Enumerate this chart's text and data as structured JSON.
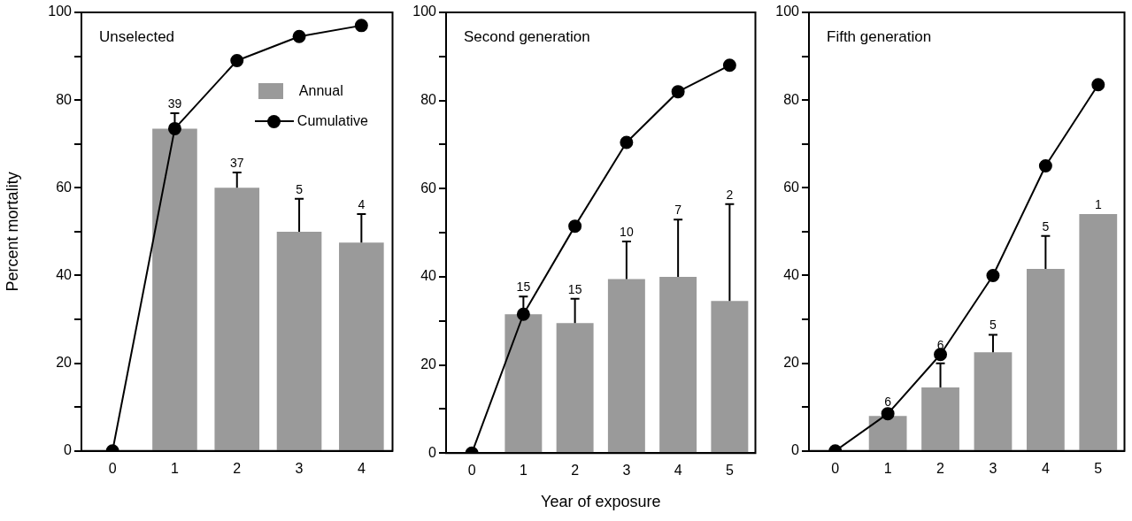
{
  "chart_data": [
    {
      "type": "bar",
      "title": "Unselected",
      "ylabel": "Percent mortality",
      "categories": [
        "0",
        "1",
        "2",
        "3",
        "4"
      ],
      "ylim": [
        0,
        100
      ],
      "yticks": [
        0,
        {
          "value": 10,
          "label": null
        },
        20,
        {
          "value": 30,
          "label": null
        },
        40,
        {
          "value": 50,
          "label": null
        },
        60,
        {
          "value": 70,
          "label": null
        },
        80,
        {
          "value": 90,
          "label": null
        },
        100
      ],
      "legend": "top right",
      "marker": "circle",
      "series": [
        {
          "name": "Annual",
          "color": "#9a9a9a",
          "values": [
            null,
            73.5,
            60,
            50,
            47.5
          ],
          "errors": [
            null,
            [
              73.5,
              77
            ],
            [
              60,
              63.5
            ],
            [
              50,
              57.5
            ],
            [
              47.5,
              54
            ]
          ]
        },
        {
          "name": "Cumulative",
          "type": "line",
          "color": "#000000",
          "values": [
            0,
            73.5,
            89,
            94.5,
            97
          ]
        }
      ],
      "annotations": [
        {
          "text": "39",
          "x": "1",
          "y": 77
        },
        {
          "text": "37",
          "x": "2",
          "y": 63.5
        },
        {
          "text": "5",
          "x": "3",
          "y": 57.5
        },
        {
          "text": "4",
          "x": "4",
          "y": 54
        }
      ]
    },
    {
      "type": "bar",
      "title": "Second generation",
      "xlabel": "Year of exposure",
      "categories": [
        "0",
        "1",
        "2",
        "3",
        "4",
        "5"
      ],
      "ylim": [
        0,
        100
      ],
      "yticks": [
        0,
        {
          "value": 10,
          "label": null
        },
        20,
        {
          "value": 30,
          "label": null
        },
        40,
        {
          "value": 50,
          "label": null
        },
        60,
        {
          "value": 70,
          "label": null
        },
        80,
        {
          "value": 90,
          "label": null
        },
        100
      ],
      "marker": "circle",
      "series": [
        {
          "color": "#9a9a9a",
          "values": [
            null,
            31.5,
            29.5,
            39.5,
            40,
            34.5
          ],
          "errors": [
            null,
            [
              31.5,
              35.5
            ],
            [
              29.5,
              35
            ],
            [
              39.5,
              48
            ],
            [
              40,
              53
            ],
            [
              34.5,
              56.5
            ]
          ]
        },
        {
          "type": "line",
          "color": "#000000",
          "values": [
            0,
            31.5,
            51.5,
            70.5,
            82,
            88
          ]
        }
      ],
      "annotations": [
        {
          "text": "15",
          "x": "1",
          "y": 35.5
        },
        {
          "text": "15",
          "x": "2",
          "y": 35
        },
        {
          "text": "10",
          "x": "3",
          "y": 48
        },
        {
          "text": "7",
          "x": "4",
          "y": 53
        },
        {
          "text": "2",
          "x": "5",
          "y": 56.5
        }
      ]
    },
    {
      "type": "bar",
      "title": "Fifth generation",
      "categories": [
        "0",
        "1",
        "2",
        "3",
        "4",
        "5"
      ],
      "ylim": [
        0,
        100
      ],
      "yticks": [
        0,
        {
          "value": 10,
          "label": null
        },
        20,
        {
          "value": 30,
          "label": null
        },
        40,
        {
          "value": 50,
          "label": null
        },
        60,
        {
          "value": 70,
          "label": null
        },
        80,
        {
          "value": 90,
          "label": null
        },
        100
      ],
      "marker": "circle",
      "series": [
        {
          "color": "#9a9a9a",
          "values": [
            null,
            8,
            14.5,
            22.5,
            41.5,
            54
          ],
          "errors": [
            null,
            null,
            [
              14.5,
              20
            ],
            [
              22.5,
              26.5
            ],
            [
              41.5,
              49
            ],
            null
          ]
        },
        {
          "type": "line",
          "color": "#000000",
          "values": [
            0,
            8.5,
            22,
            40,
            65,
            83.5
          ]
        }
      ],
      "annotations": [
        {
          "text": "6",
          "x": "1",
          "y": 9
        },
        {
          "text": "6",
          "x": "2",
          "y": 22
        },
        {
          "text": "5",
          "x": "3",
          "y": 26.5
        },
        {
          "text": "5",
          "x": "4",
          "y": 49
        },
        {
          "text": "1",
          "x": "5",
          "y": 54
        }
      ]
    }
  ]
}
